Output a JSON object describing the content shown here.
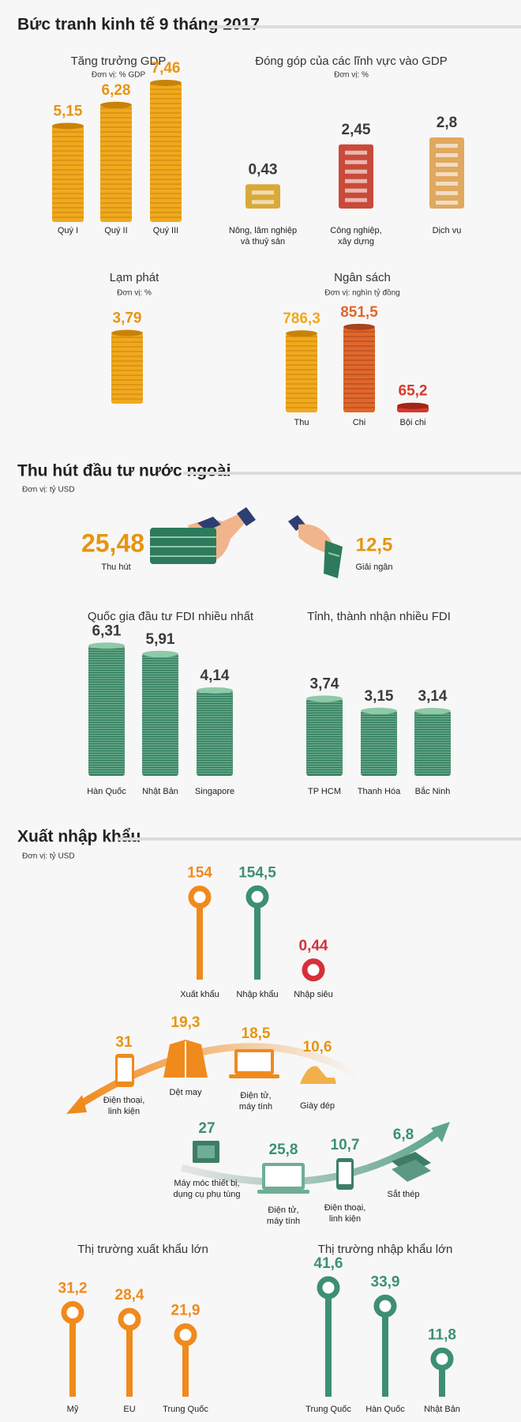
{
  "title": "Bức tranh kinh tế 9 tháng 2017",
  "gdp": {
    "title": "Tăng trưởng GDP",
    "unit": "Đơn vị: % GDP",
    "items": [
      {
        "label": "Quý I",
        "value": 5.15,
        "value_label": "5,15"
      },
      {
        "label": "Quý II",
        "value": 6.28,
        "value_label": "6,28"
      },
      {
        "label": "Quý III",
        "value": 7.46,
        "value_label": "7,46"
      }
    ]
  },
  "sectors": {
    "title": "Đóng góp của các lĩnh vực vào GDP",
    "unit": "Đơn vị: %",
    "items": [
      {
        "label": [
          "Nông, lâm nghiệp",
          "và thuỷ sản"
        ],
        "value": 0.43,
        "value_label": "0,43"
      },
      {
        "label": [
          "Công nghiệp,",
          "xây dựng"
        ],
        "value": 2.45,
        "value_label": "2,45"
      },
      {
        "label": [
          "Dịch vụ"
        ],
        "value": 2.8,
        "value_label": "2,8"
      }
    ]
  },
  "inflation": {
    "title": "Lạm phát",
    "unit": "Đơn vị: %",
    "value": 3.79,
    "value_label": "3,79"
  },
  "budget": {
    "title": "Ngân sách",
    "unit": "Đơn vị: nghìn tỷ đồng",
    "items": [
      {
        "label": "Thu",
        "value": 786.3,
        "value_label": "786,3"
      },
      {
        "label": "Chi",
        "value": 851.5,
        "value_label": "851,5"
      },
      {
        "label": "Bội chi",
        "value": 65.2,
        "value_label": "65,2"
      }
    ]
  },
  "fdi": {
    "title": "Thu hút đầu tư nước ngoài",
    "unit": "Đơn vị: tỷ USD",
    "attracted": {
      "label": "Thu hút",
      "value": "25,48"
    },
    "disbursed": {
      "label": "Giải ngân",
      "value": "12,5"
    },
    "countries": {
      "title": "Quốc gia đầu tư FDI nhiều nhất",
      "items": [
        {
          "label": "Hàn Quốc",
          "value": 6.31,
          "value_label": "6,31"
        },
        {
          "label": "Nhật Bản",
          "value": 5.91,
          "value_label": "5,91"
        },
        {
          "label": "Singapore",
          "value": 4.14,
          "value_label": "4,14"
        }
      ]
    },
    "provinces": {
      "title": "Tỉnh, thành nhận nhiều FDI",
      "items": [
        {
          "label": "TP HCM",
          "value": 3.74,
          "value_label": "3,74"
        },
        {
          "label": "Thanh Hóa",
          "value": 3.15,
          "value_label": "3,15"
        },
        {
          "label": "Bắc Ninh",
          "value": 3.14,
          "value_label": "3,14"
        }
      ]
    }
  },
  "trade": {
    "title": "Xuất nhập khẩu",
    "unit": "Đơn vị: tỷ USD",
    "balance": [
      {
        "label": "Xuất khẩu",
        "value": 154
      },
      {
        "label": "Nhập khẩu",
        "value": 154.5,
        "value_label": "154,5"
      },
      {
        "label": "Nhập siêu",
        "value": 0.44,
        "value_label": "0,44"
      }
    ],
    "export_goods": [
      {
        "label": [
          "Điện thoại,",
          "linh kiện"
        ],
        "value": "31"
      },
      {
        "label": [
          "Dệt may"
        ],
        "value": "19,3"
      },
      {
        "label": [
          "Điện tử,",
          "máy tính"
        ],
        "value": "18,5"
      },
      {
        "label": [
          "Giày dép"
        ],
        "value": "10,6"
      }
    ],
    "import_goods": [
      {
        "label": [
          "Máy móc thiết bị,",
          "dụng cụ phụ tùng"
        ],
        "value": "27"
      },
      {
        "label": [
          "Điện tử,",
          "máy tính"
        ],
        "value": "25,8"
      },
      {
        "label": [
          "Điện thoại,",
          "linh kiện"
        ],
        "value": "10,7"
      },
      {
        "label": [
          "Sắt thép"
        ],
        "value": "6,8"
      }
    ],
    "export_markets": {
      "title": "Thị trường xuất khẩu lớn",
      "items": [
        {
          "label": "Mỹ",
          "value": 31.2,
          "value_label": "31,2"
        },
        {
          "label": "EU",
          "value": 28.4,
          "value_label": "28,4"
        },
        {
          "label": "Trung Quốc",
          "value": 21.9,
          "value_label": "21,9"
        }
      ]
    },
    "import_markets": {
      "title": "Thị trường nhập khẩu lớn",
      "items": [
        {
          "label": "Trung Quốc",
          "value": 41.6,
          "value_label": "41,6"
        },
        {
          "label": "Hàn Quốc",
          "value": 33.9,
          "value_label": "33,9"
        },
        {
          "label": "Nhật Bản",
          "value": 11.8,
          "value_label": "11,8"
        }
      ]
    }
  }
}
